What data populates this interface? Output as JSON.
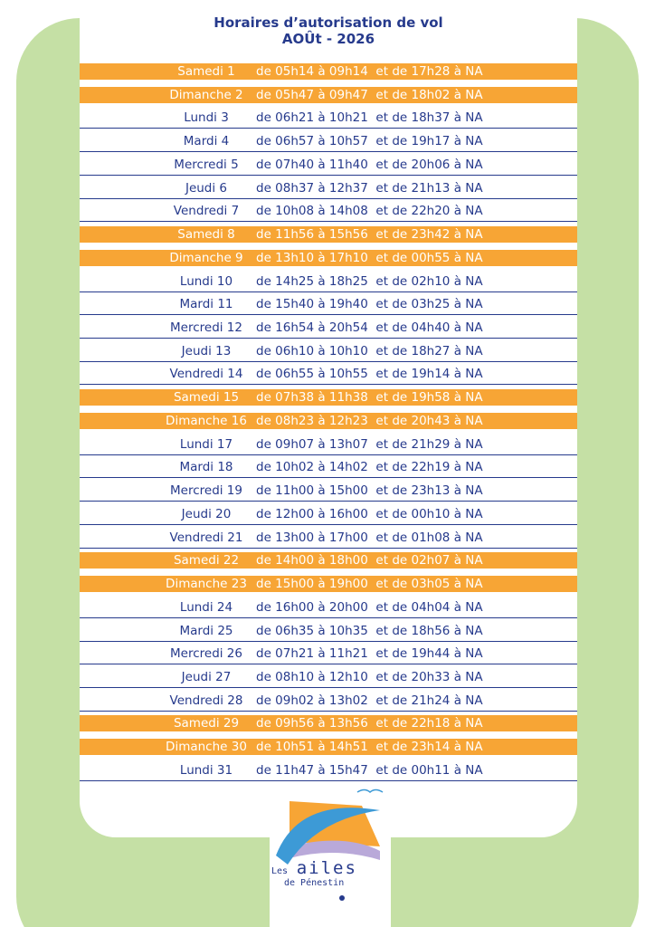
{
  "header": {
    "title": "Horaires d’autorisation de vol",
    "subtitle": "AOÛt - 2026"
  },
  "rows": [
    {
      "day": "Samedi 1",
      "hours": "de 05h14 à 09h14  et de 17h28 à NA",
      "weekend": true
    },
    {
      "day": "Dimanche 2",
      "hours": "de 05h47 à 09h47  et de 18h02 à NA",
      "weekend": true
    },
    {
      "day": "Lundi 3",
      "hours": "de 06h21 à 10h21  et de 18h37 à NA",
      "weekend": false
    },
    {
      "day": "Mardi 4",
      "hours": "de 06h57 à 10h57  et de 19h17 à NA",
      "weekend": false
    },
    {
      "day": "Mercredi 5",
      "hours": "de 07h40 à 11h40  et de 20h06 à NA",
      "weekend": false
    },
    {
      "day": "Jeudi 6",
      "hours": "de 08h37 à 12h37  et de 21h13 à NA",
      "weekend": false
    },
    {
      "day": "Vendredi 7",
      "hours": "de 10h08 à 14h08  et de 22h20 à NA",
      "weekend": false
    },
    {
      "day": "Samedi 8",
      "hours": "de 11h56 à 15h56  et de 23h42 à NA",
      "weekend": true
    },
    {
      "day": "Dimanche 9",
      "hours": "de 13h10 à 17h10  et de 00h55 à NA",
      "weekend": true
    },
    {
      "day": "Lundi 10",
      "hours": "de 14h25 à 18h25  et de 02h10 à NA",
      "weekend": false
    },
    {
      "day": "Mardi 11",
      "hours": "de 15h40 à 19h40  et de 03h25 à NA",
      "weekend": false
    },
    {
      "day": "Mercredi 12",
      "hours": "de 16h54 à 20h54  et de 04h40 à NA",
      "weekend": false
    },
    {
      "day": "Jeudi 13",
      "hours": "de 06h10 à 10h10  et de 18h27 à NA",
      "weekend": false
    },
    {
      "day": "Vendredi 14",
      "hours": "de 06h55 à 10h55  et de 19h14 à NA",
      "weekend": false
    },
    {
      "day": "Samedi 15",
      "hours": "de 07h38 à 11h38  et de 19h58 à NA",
      "weekend": true
    },
    {
      "day": "Dimanche 16",
      "hours": "de 08h23 à 12h23  et de 20h43 à NA",
      "weekend": true
    },
    {
      "day": "Lundi 17",
      "hours": "de 09h07 à 13h07  et de 21h29 à NA",
      "weekend": false
    },
    {
      "day": "Mardi 18",
      "hours": "de 10h02 à 14h02  et de 22h19 à NA",
      "weekend": false
    },
    {
      "day": "Mercredi 19",
      "hours": "de 11h00 à 15h00  et de 23h13 à NA",
      "weekend": false
    },
    {
      "day": "Jeudi 20",
      "hours": "de 12h00 à 16h00  et de 00h10 à NA",
      "weekend": false
    },
    {
      "day": "Vendredi 21",
      "hours": "de 13h00 à 17h00  et de 01h08 à NA",
      "weekend": false
    },
    {
      "day": "Samedi 22",
      "hours": "de 14h00 à 18h00  et de 02h07 à NA",
      "weekend": true
    },
    {
      "day": "Dimanche 23",
      "hours": "de 15h00 à 19h00  et de 03h05 à NA",
      "weekend": true
    },
    {
      "day": "Lundi 24",
      "hours": "de 16h00 à 20h00  et de 04h04 à NA",
      "weekend": false
    },
    {
      "day": "Mardi 25",
      "hours": "de 06h35 à 10h35  et de 18h56 à NA",
      "weekend": false
    },
    {
      "day": "Mercredi 26",
      "hours": "de 07h21 à 11h21  et de 19h44 à NA",
      "weekend": false
    },
    {
      "day": "Jeudi 27",
      "hours": "de 08h10 à 12h10  et de 20h33 à NA",
      "weekend": false
    },
    {
      "day": "Vendredi 28",
      "hours": "de 09h02 à 13h02  et de 21h24 à NA",
      "weekend": false
    },
    {
      "day": "Samedi 29",
      "hours": "de 09h56 à 13h56  et de 22h18 à NA",
      "weekend": true
    },
    {
      "day": "Dimanche 30",
      "hours": "de 10h51 à 14h51  et de 23h14 à NA",
      "weekend": true
    },
    {
      "day": "Lundi 31",
      "hours": "de 11h47 à 15h47  et de 00h11 à NA",
      "weekend": false
    }
  ],
  "logo": {
    "les": "Les",
    "ailes": "ailes",
    "place": "de Pénestin"
  }
}
